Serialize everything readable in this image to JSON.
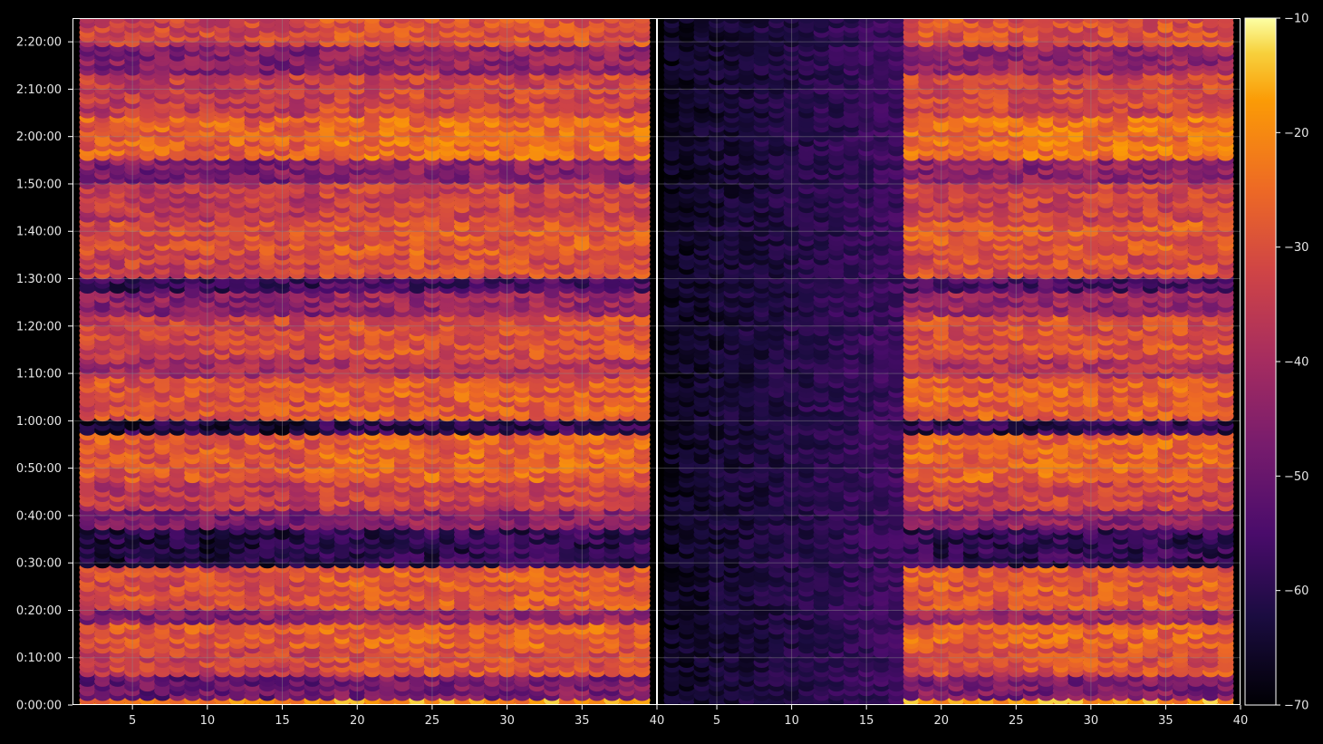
{
  "chart_data": {
    "type": "heatmap",
    "title": "",
    "xlabel": "",
    "ylabel": "",
    "grid": true,
    "colormap": "inferno",
    "background": "#000000",
    "grid_color": "#8a8a8a",
    "panels": [
      {
        "name": "left",
        "xlim": [
          1,
          40
        ],
        "x_ticks": [
          "5",
          "10",
          "15",
          "20",
          "25",
          "30",
          "35",
          "40"
        ],
        "x_tick_values": [
          5,
          10,
          15,
          20,
          25,
          30,
          35,
          40
        ],
        "x_range_data": [
          2,
          39
        ]
      },
      {
        "name": "right",
        "xlim": [
          1,
          40
        ],
        "x_ticks": [
          "5",
          "10",
          "15",
          "20",
          "25",
          "30",
          "35",
          "40"
        ],
        "x_tick_values": [
          5,
          10,
          15,
          20,
          25,
          30,
          35,
          40
        ],
        "x_range_data": [
          2,
          39
        ],
        "low_signal_x_range": [
          2,
          17
        ]
      }
    ],
    "y_axis": {
      "unit": "time (h:mm:ss)",
      "range_seconds": [
        0,
        8700
      ],
      "ticks": [
        "0:00:00",
        "0:10:00",
        "0:20:00",
        "0:30:00",
        "0:40:00",
        "0:50:00",
        "1:00:00",
        "1:10:00",
        "1:20:00",
        "1:30:00",
        "1:40:00",
        "1:50:00",
        "2:00:00",
        "2:10:00",
        "2:20:00"
      ],
      "tick_values_seconds": [
        0,
        600,
        1200,
        1800,
        2400,
        3000,
        3600,
        4200,
        4800,
        5400,
        6000,
        6600,
        7200,
        7800,
        8400
      ]
    },
    "colorbar": {
      "min": -70,
      "max": -10,
      "ticks": [
        "−10",
        "−20",
        "−30",
        "−40",
        "−50",
        "−60",
        "−70"
      ],
      "tick_values": [
        -10,
        -20,
        -30,
        -40,
        -50,
        -60,
        -70
      ]
    },
    "value_bands": [
      {
        "t_start": 0,
        "t_end": 120,
        "value": -22
      },
      {
        "t_start": 120,
        "t_end": 420,
        "value": -50
      },
      {
        "t_start": 420,
        "t_end": 780,
        "value": -33
      },
      {
        "t_start": 780,
        "t_end": 1080,
        "value": -29
      },
      {
        "t_start": 1080,
        "t_end": 1260,
        "value": -45
      },
      {
        "t_start": 1260,
        "t_end": 1800,
        "value": -31
      },
      {
        "t_start": 1800,
        "t_end": 2280,
        "value": -62
      },
      {
        "t_start": 2280,
        "t_end": 2520,
        "value": -47
      },
      {
        "t_start": 2520,
        "t_end": 2880,
        "value": -36
      },
      {
        "t_start": 2880,
        "t_end": 3480,
        "value": -29
      },
      {
        "t_start": 3480,
        "t_end": 3660,
        "value": -62
      },
      {
        "t_start": 3660,
        "t_end": 4200,
        "value": -30
      },
      {
        "t_start": 4200,
        "t_end": 4440,
        "value": -40
      },
      {
        "t_start": 4440,
        "t_end": 4980,
        "value": -33
      },
      {
        "t_start": 4980,
        "t_end": 5280,
        "value": -45
      },
      {
        "t_start": 5280,
        "t_end": 5460,
        "value": -58
      },
      {
        "t_start": 5460,
        "t_end": 5760,
        "value": -34
      },
      {
        "t_start": 5760,
        "t_end": 6180,
        "value": -31
      },
      {
        "t_start": 6180,
        "t_end": 6660,
        "value": -36
      },
      {
        "t_start": 6660,
        "t_end": 6960,
        "value": -47
      },
      {
        "t_start": 6960,
        "t_end": 7500,
        "value": -27
      },
      {
        "t_start": 7500,
        "t_end": 8040,
        "value": -35
      },
      {
        "t_start": 8040,
        "t_end": 8400,
        "value": -46
      },
      {
        "t_start": 8400,
        "t_end": 8700,
        "value": -33
      }
    ]
  }
}
